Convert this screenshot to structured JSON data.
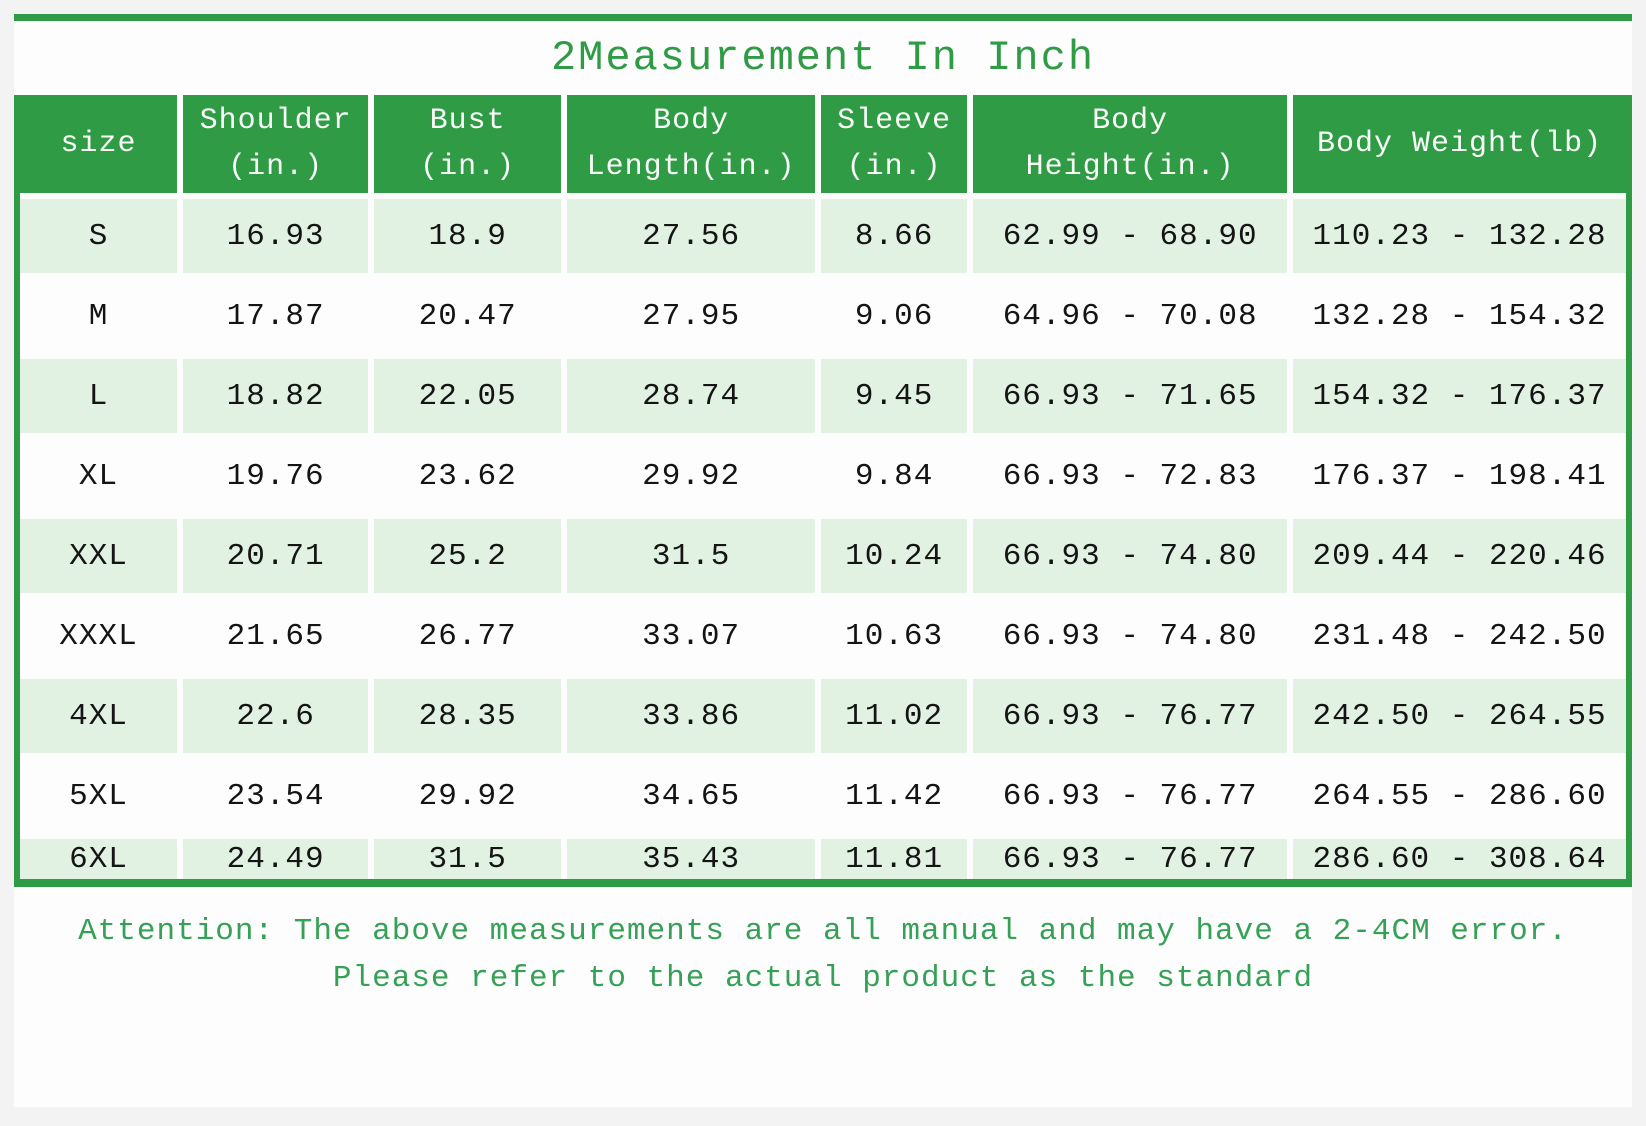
{
  "page": {
    "colors": {
      "green": "#2f9b45",
      "row_green": "#e1f2e2",
      "row_white": "#fdfdfd",
      "attention_green": "#36a156",
      "text_dark": "#141414",
      "header_text": "#f8fdf8",
      "page_bg": "#f3f3f3",
      "doc_bg": "#fdfdfd"
    }
  },
  "chart_data": {
    "type": "table",
    "title": "2Measurement In Inch",
    "columns": [
      "size",
      "Shoulder\n(in.)",
      "Bust\n(in.)",
      "Body\nLength(in.)",
      "Sleeve\n(in.)",
      "Body\nHeight(in.)",
      "Body Weight(lb)"
    ],
    "rows": [
      [
        "S",
        "16.93",
        "18.9",
        "27.56",
        "8.66",
        "62.99 - 68.90",
        "110.23 - 132.28"
      ],
      [
        "M",
        "17.87",
        "20.47",
        "27.95",
        "9.06",
        "64.96 - 70.08",
        "132.28 - 154.32"
      ],
      [
        "L",
        "18.82",
        "22.05",
        "28.74",
        "9.45",
        "66.93 - 71.65",
        "154.32 - 176.37"
      ],
      [
        "XL",
        "19.76",
        "23.62",
        "29.92",
        "9.84",
        "66.93 - 72.83",
        "176.37 - 198.41"
      ],
      [
        "XXL",
        "20.71",
        "25.2",
        "31.5",
        "10.24",
        "66.93 - 74.80",
        "209.44 - 220.46"
      ],
      [
        "XXXL",
        "21.65",
        "26.77",
        "33.07",
        "10.63",
        "66.93 - 74.80",
        "231.48 - 242.50"
      ],
      [
        "4XL",
        "22.6",
        "28.35",
        "33.86",
        "11.02",
        "66.93 - 76.77",
        "242.50 - 264.55"
      ],
      [
        "5XL",
        "23.54",
        "29.92",
        "34.65",
        "11.42",
        "66.93 - 76.77",
        "264.55 - 286.60"
      ],
      [
        "6XL",
        "24.49",
        "31.5",
        "35.43",
        "11.81",
        "66.93 - 76.77",
        "286.60 - 308.64"
      ]
    ],
    "note_line1": "Attention: The above measurements are all manual and may have a 2-4CM error.",
    "note_line2": "Please refer to the actual product as the standard"
  }
}
